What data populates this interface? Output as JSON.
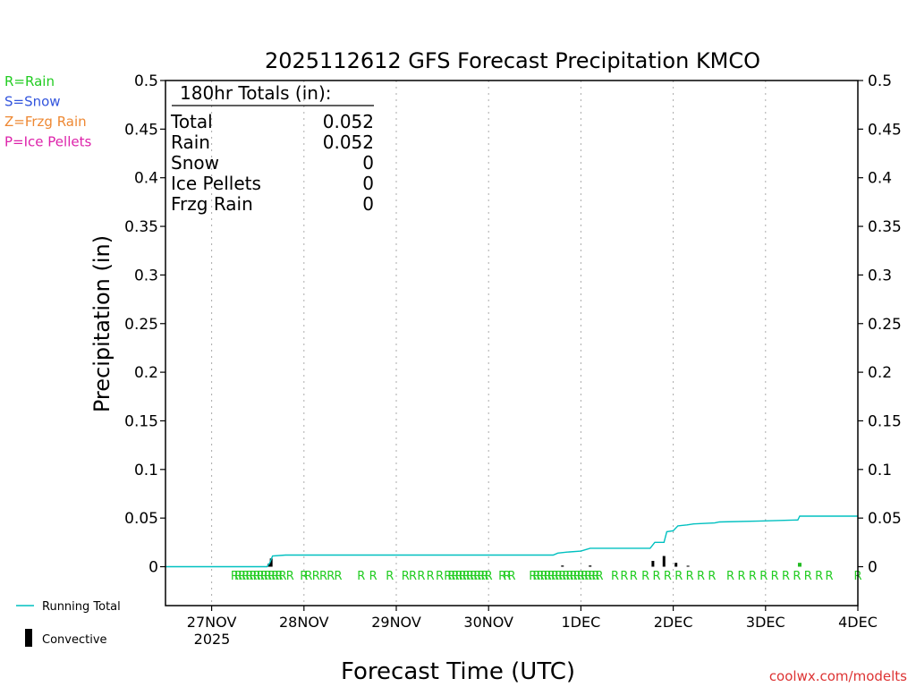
{
  "chart_data": {
    "type": "bar",
    "title": "2025112612 GFS Forecast Precipitation KMCO",
    "xlabel": "Forecast Time (UTC)",
    "ylabel": "Precipitation (in)",
    "ylim": [
      -0.04,
      0.5
    ],
    "xlim_days": [
      -0.5,
      7.0
    ],
    "y_ticks": [
      {
        "v": 0,
        "label": "0"
      },
      {
        "v": 0.05,
        "label": "0.05"
      },
      {
        "v": 0.1,
        "label": "0.1"
      },
      {
        "v": 0.15,
        "label": "0.15"
      },
      {
        "v": 0.2,
        "label": "0.2"
      },
      {
        "v": 0.25,
        "label": "0.25"
      },
      {
        "v": 0.3,
        "label": "0.3"
      },
      {
        "v": 0.35,
        "label": "0.35"
      },
      {
        "v": 0.4,
        "label": "0.4"
      },
      {
        "v": 0.45,
        "label": "0.45"
      },
      {
        "v": 0.5,
        "label": "0.5"
      }
    ],
    "x_ticks": [
      {
        "d": 0,
        "label": "27NOV"
      },
      {
        "d": 1,
        "label": "28NOV"
      },
      {
        "d": 2,
        "label": "29NOV"
      },
      {
        "d": 3,
        "label": "30NOV"
      },
      {
        "d": 4,
        "label": "1DEC"
      },
      {
        "d": 5,
        "label": "2DEC"
      },
      {
        "d": 6,
        "label": "3DEC"
      },
      {
        "d": 7,
        "label": "4DEC"
      }
    ],
    "year_label": "2025",
    "legend_ptype": [
      {
        "label": "R=Rain",
        "color": "#22cc22"
      },
      {
        "label": "S=Snow",
        "color": "#3355dd"
      },
      {
        "label": "Z=Frzg Rain",
        "color": "#ee8833"
      },
      {
        "label": "P=Ice Pellets",
        "color": "#dd22aa"
      }
    ],
    "legend_series": {
      "running_total": "Running Total",
      "convective": "Convective"
    },
    "totals_box": {
      "heading": "180hr Totals (in):",
      "rows": [
        {
          "label": "Total",
          "value": "0.052"
        },
        {
          "label": "Rain",
          "value": "0.052"
        },
        {
          "label": "Snow",
          "value": "0"
        },
        {
          "label": "Ice Pellets",
          "value": "0"
        },
        {
          "label": "Frzg Rain",
          "value": "0"
        }
      ]
    },
    "running_total": [
      [
        -0.5,
        0
      ],
      [
        0.6,
        0
      ],
      [
        0.63,
        0.004
      ],
      [
        0.66,
        0.011
      ],
      [
        0.8,
        0.012
      ],
      [
        3.7,
        0.012
      ],
      [
        3.75,
        0.014
      ],
      [
        3.85,
        0.015
      ],
      [
        4.0,
        0.016
      ],
      [
        4.1,
        0.019
      ],
      [
        4.75,
        0.019
      ],
      [
        4.8,
        0.025
      ],
      [
        4.9,
        0.025
      ],
      [
        4.93,
        0.036
      ],
      [
        5.0,
        0.037
      ],
      [
        5.05,
        0.042
      ],
      [
        5.15,
        0.043
      ],
      [
        5.22,
        0.044
      ],
      [
        5.45,
        0.045
      ],
      [
        5.5,
        0.046
      ],
      [
        5.95,
        0.047
      ],
      [
        6.35,
        0.048
      ],
      [
        6.37,
        0.052
      ],
      [
        7.0,
        0.052
      ]
    ],
    "bars": [
      {
        "d": 0.62,
        "v": 0.003,
        "type": "convective"
      },
      {
        "d": 0.645,
        "v": 0.0085,
        "type": "convective"
      },
      {
        "d": 4.78,
        "v": 0.006,
        "type": "convective"
      },
      {
        "d": 4.9,
        "v": 0.011,
        "type": "convective"
      },
      {
        "d": 5.03,
        "v": 0.004,
        "type": "convective"
      },
      {
        "d": 5.16,
        "v": 0.001,
        "type": "convective"
      },
      {
        "d": 6.37,
        "v": 0.004,
        "type": "rain"
      },
      {
        "d": 3.8,
        "v": 0.0012,
        "type": "convective"
      },
      {
        "d": 4.1,
        "v": 0.0012,
        "type": "convective"
      }
    ],
    "rain_marker_letter": "R",
    "rain_markers": [
      0.25,
      0.29,
      0.33,
      0.37,
      0.41,
      0.45,
      0.49,
      0.53,
      0.57,
      0.61,
      0.65,
      0.69,
      0.73,
      0.77,
      0.85,
      1.0,
      1.05,
      1.13,
      1.21,
      1.29,
      1.37,
      1.62,
      1.75,
      1.93,
      2.1,
      2.18,
      2.27,
      2.37,
      2.47,
      2.56,
      2.6,
      2.64,
      2.68,
      2.72,
      2.76,
      2.8,
      2.84,
      2.88,
      2.92,
      2.96,
      3.0,
      3.15,
      3.2,
      3.25,
      3.48,
      3.52,
      3.56,
      3.6,
      3.64,
      3.68,
      3.72,
      3.76,
      3.8,
      3.84,
      3.88,
      3.92,
      3.96,
      4.0,
      4.04,
      4.08,
      4.12,
      4.16,
      4.2,
      4.37,
      4.47,
      4.57,
      4.7,
      4.82,
      4.94,
      5.06,
      5.18,
      5.3,
      5.42,
      5.62,
      5.74,
      5.86,
      5.98,
      6.1,
      6.22,
      6.34,
      6.46,
      6.58,
      6.69,
      7.0
    ],
    "watermark": "coolwx.com/modelts",
    "colors": {
      "running_total": "#00c0c0",
      "convective": "#000000",
      "rain_bar": "#22bb22",
      "rain_marker": "#22cc22",
      "watermark": "#dd3333",
      "grid": "#aaaaaa"
    }
  }
}
